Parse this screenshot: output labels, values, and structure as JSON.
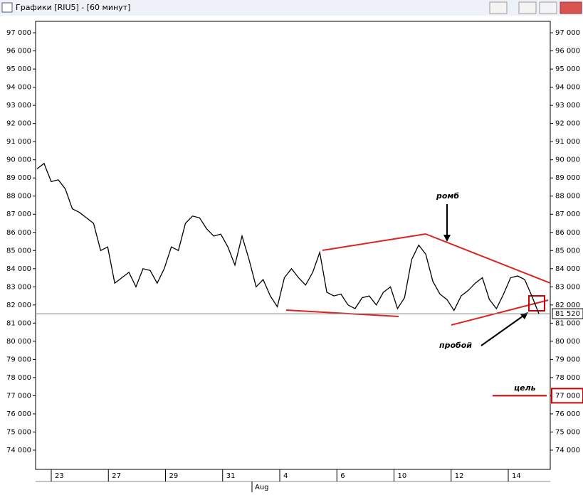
{
  "window": {
    "title": "Графики [RIU5] - [60 минут]"
  },
  "chart_data": {
    "type": "line",
    "series": [
      {
        "name": "RIU5",
        "color": "#000000",
        "values": [
          89500,
          89800,
          88800,
          88900,
          88400,
          87300,
          87100,
          86800,
          86500,
          85000,
          85200,
          83200,
          83500,
          83800,
          83000,
          84000,
          83900,
          83200,
          84000,
          85200,
          85000,
          86500,
          86900,
          86800,
          86200,
          85800,
          85900,
          85200,
          84200,
          85800,
          84500,
          83000,
          83400,
          82500,
          81900,
          83500,
          84000,
          83500,
          83100,
          83800,
          84900,
          82700,
          82500,
          82600,
          82000,
          81800,
          82400,
          82500,
          82000,
          82700,
          83000,
          81800,
          82400,
          84500,
          85300,
          84800,
          83300,
          82600,
          82300,
          81700,
          82500,
          82800,
          83200,
          83500,
          82300,
          81800,
          82600,
          83500,
          83600,
          83400,
          82500,
          81520
        ]
      }
    ],
    "ylim": [
      72940,
      97630
    ],
    "yticks": [
      {
        "value": 97000,
        "label": "97 000"
      },
      {
        "value": 96000,
        "label": "96 000"
      },
      {
        "value": 95000,
        "label": "95 000"
      },
      {
        "value": 94000,
        "label": "94 000"
      },
      {
        "value": 93000,
        "label": "93 000"
      },
      {
        "value": 92000,
        "label": "92 000"
      },
      {
        "value": 91000,
        "label": "91 000"
      },
      {
        "value": 90000,
        "label": "90 000"
      },
      {
        "value": 89000,
        "label": "89 000"
      },
      {
        "value": 88000,
        "label": "88 000"
      },
      {
        "value": 87000,
        "label": "87 000"
      },
      {
        "value": 86000,
        "label": "86 000"
      },
      {
        "value": 85000,
        "label": "85 000"
      },
      {
        "value": 84000,
        "label": "84 000"
      },
      {
        "value": 83000,
        "label": "83 000"
      },
      {
        "value": 82000,
        "label": "82 000"
      },
      {
        "value": 81000,
        "label": "81 000"
      },
      {
        "value": 80000,
        "label": "80 000"
      },
      {
        "value": 79000,
        "label": "79 000"
      },
      {
        "value": 78000,
        "label": "78 000"
      },
      {
        "value": 77000,
        "label": "77 000"
      },
      {
        "value": 76000,
        "label": "76 000"
      },
      {
        "value": 75000,
        "label": "75 000"
      },
      {
        "value": 74000,
        "label": "74 000"
      }
    ],
    "x_labels": [
      "23",
      "27",
      "29",
      "31",
      "4",
      "6",
      "10",
      "12",
      "14"
    ],
    "month_label": "Aug",
    "current_price": {
      "value": 81520,
      "label": "81 520"
    },
    "target": {
      "value": 77000,
      "label": "77 000",
      "color": "#cc0000"
    },
    "annotations": {
      "pattern": "ромб",
      "breakout": "пробой",
      "target": "цель"
    },
    "grid": false
  }
}
